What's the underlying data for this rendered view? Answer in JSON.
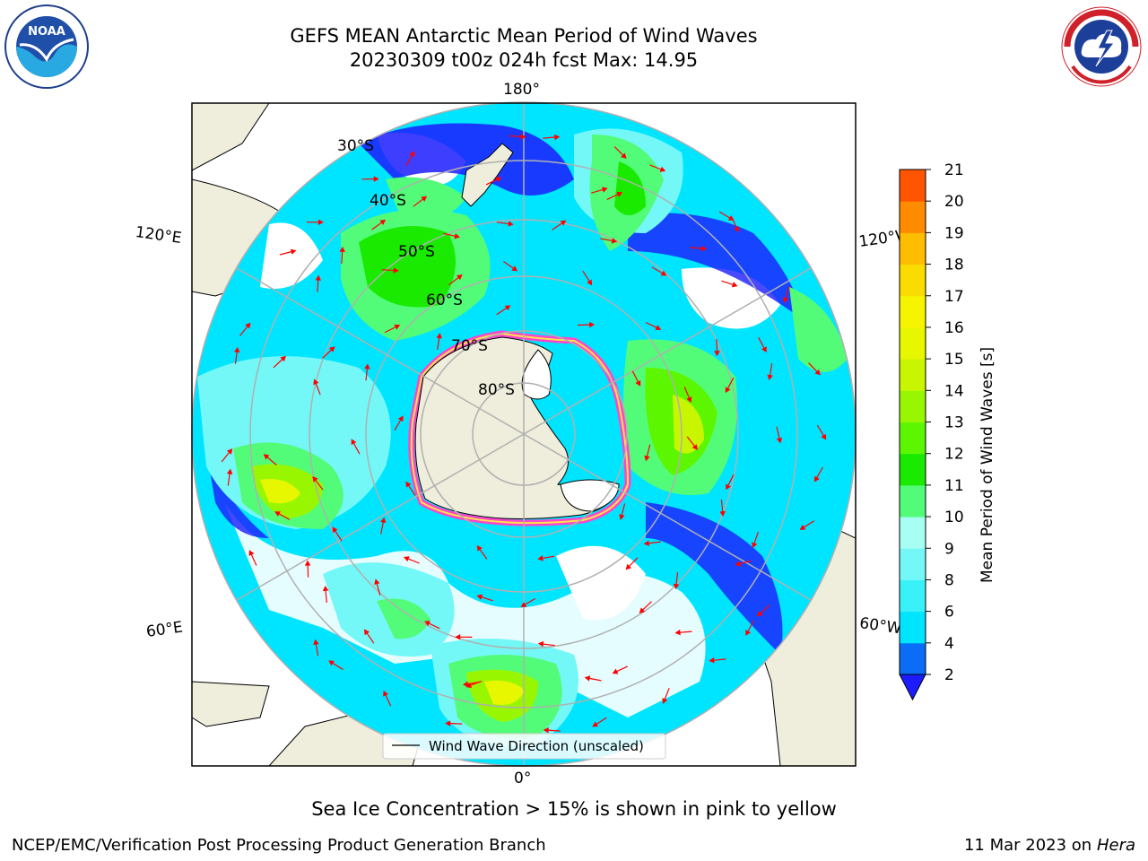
{
  "title_line1": "GEFS MEAN Antarctic Mean Period of Wind Waves",
  "title_line2": "20230309 t00z 024h fcst   Max: 14.95",
  "lon_labels": {
    "top": "180°",
    "bottom": "0°",
    "upper_left": "120°E",
    "upper_right": "120°W",
    "lower_left": "60°E",
    "lower_right": "60°W"
  },
  "lat_labels": [
    "30°S",
    "40°S",
    "50°S",
    "60°S",
    "70°S",
    "80°S"
  ],
  "legend_label": "Wind Wave Direction (unscaled)",
  "colorbar": {
    "label": "Mean Period of Wind Waves [s]",
    "ticks": [
      "2",
      "4",
      "6",
      "8",
      "9",
      "10",
      "11",
      "12",
      "13",
      "14",
      "15",
      "16",
      "17",
      "18",
      "19",
      "20",
      "21"
    ],
    "colors": [
      "#0a6cf7",
      "#00e5ff",
      "#39f2f7",
      "#74f7f7",
      "#a6fff2",
      "#52fc79",
      "#19ea00",
      "#5cf700",
      "#98f700",
      "#c8f500",
      "#e7f700",
      "#f7f400",
      "#fadc00",
      "#ffbd00",
      "#ff8c00",
      "#ff5400",
      "#ff2200",
      "#ff0000"
    ],
    "extend_color": "#1c1cff"
  },
  "subtitle": "Sea Ice Concentration > 15% is shown in pink to yellow",
  "footer_left": "NCEP/EMC/Verification Post Processing Product Generation Branch",
  "footer_right_date": "11 Mar 2023 on",
  "footer_right_host": "Hera",
  "logos": {
    "noaa": "NOAA",
    "nws": "NATIONAL WEATHER SERVICE"
  }
}
